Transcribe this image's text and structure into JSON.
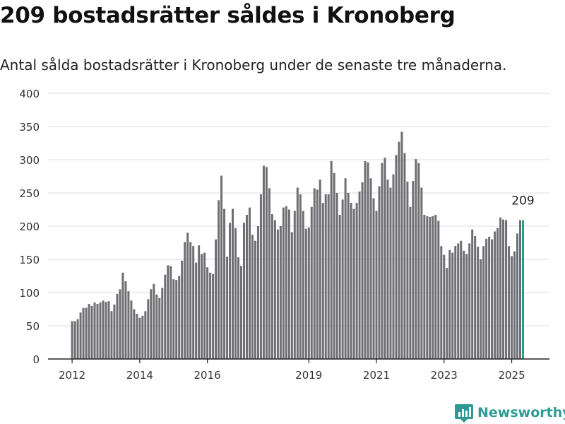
{
  "title": "209 bostadsrätter såldes i Kronoberg",
  "subtitle": "Antal sålda bostadsrätter i Kronoberg under de senaste tre månaderna.",
  "logo": {
    "text": "Newsworthy",
    "icon": "bar-chart-logo-icon",
    "color": "#2d9b93"
  },
  "chart_data": {
    "type": "bar",
    "title": "",
    "xlabel": "",
    "ylabel": "",
    "ylim": [
      0,
      400
    ],
    "yticks": [
      0,
      50,
      100,
      150,
      200,
      250,
      300,
      350,
      400
    ],
    "xticks": [
      {
        "label": "2012",
        "year": 2012
      },
      {
        "label": "2014",
        "year": 2014
      },
      {
        "label": "2016",
        "year": 2016
      },
      {
        "label": "2019",
        "year": 2019
      },
      {
        "label": "2021",
        "year": 2021
      },
      {
        "label": "2023",
        "year": 2023
      },
      {
        "label": "2025",
        "year": 2025
      }
    ],
    "grid": true,
    "start": "2012-01",
    "bar_color": "#6e6e73",
    "highlight_color": "#2d9b93",
    "highlight_last": true,
    "annotation": "209",
    "values": [
      57,
      57,
      60,
      70,
      77,
      77,
      83,
      80,
      85,
      83,
      85,
      88,
      86,
      87,
      72,
      82,
      98,
      105,
      130,
      117,
      102,
      88,
      75,
      68,
      62,
      65,
      72,
      90,
      105,
      113,
      97,
      92,
      107,
      127,
      141,
      140,
      120,
      119,
      125,
      148,
      176,
      190,
      176,
      170,
      145,
      171,
      158,
      160,
      138,
      130,
      128,
      180,
      239,
      276,
      226,
      154,
      205,
      226,
      197,
      153,
      140,
      205,
      217,
      228,
      187,
      178,
      200,
      248,
      291,
      289,
      257,
      218,
      209,
      195,
      200,
      228,
      230,
      225,
      191,
      223,
      258,
      248,
      223,
      196,
      198,
      229,
      257,
      255,
      270,
      235,
      248,
      248,
      298,
      280,
      250,
      217,
      240,
      272,
      250,
      235,
      226,
      235,
      252,
      266,
      298,
      296,
      272,
      242,
      223,
      260,
      295,
      303,
      270,
      258,
      278,
      307,
      327,
      342,
      310,
      267,
      229,
      268,
      301,
      295,
      258,
      217,
      215,
      214,
      215,
      217,
      208,
      170,
      157,
      137,
      164,
      160,
      170,
      174,
      178,
      163,
      158,
      174,
      195,
      185,
      169,
      150,
      170,
      181,
      184,
      180,
      192,
      197,
      213,
      210,
      209,
      170,
      155,
      162,
      189,
      209,
      209
    ]
  }
}
